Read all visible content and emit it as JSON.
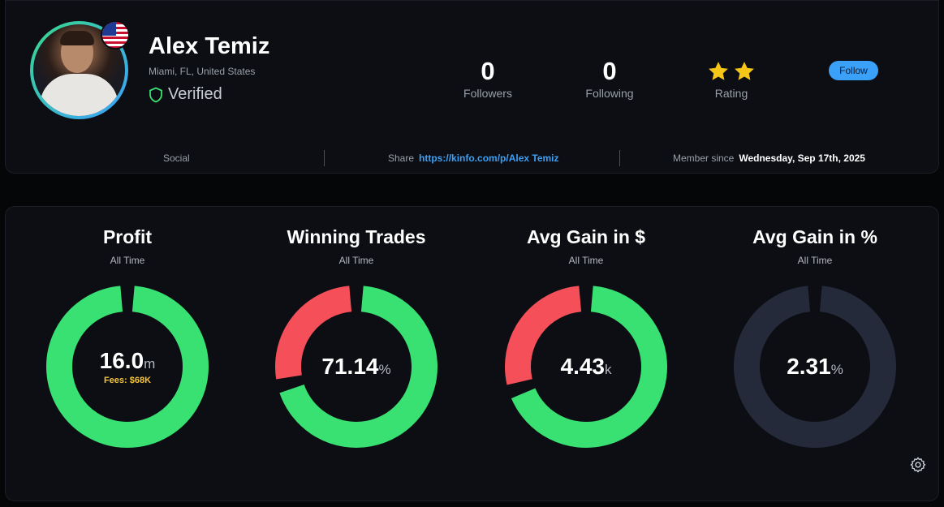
{
  "profile": {
    "name": "Alex Temiz",
    "location": "Miami, FL, United States",
    "verified_label": "Verified",
    "followers": {
      "count": "0",
      "label": "Followers"
    },
    "following": {
      "count": "0",
      "label": "Following"
    },
    "rating": {
      "label": "Rating",
      "stars": 2
    },
    "follow_button": "Follow",
    "social_label": "Social",
    "share_label": "Share",
    "share_url": "https://kinfo.com/p/Alex Temiz",
    "member_since_label": "Member since",
    "member_since_date": "Wednesday, Sep 17th, 2025"
  },
  "colors": {
    "green": "#39e072",
    "red": "#f5505a",
    "neutral": "#252a3a",
    "star": "#f5c518",
    "link": "#3ba0f7"
  },
  "metrics": [
    {
      "title": "Profit",
      "period": "All Time",
      "value": "16.0",
      "unit": "m",
      "fees": "Fees: $68K",
      "green_fraction": 1.0,
      "ring": "green"
    },
    {
      "title": "Winning Trades",
      "period": "All Time",
      "value": "71.14",
      "unit": "%",
      "green_fraction": 0.7114,
      "ring": "split"
    },
    {
      "title": "Avg Gain in $",
      "period": "All Time",
      "value": "4.43",
      "unit": "k",
      "green_fraction": 0.7,
      "ring": "split"
    },
    {
      "title": "Avg Gain in %",
      "period": "All Time",
      "value": "2.31",
      "unit": "%",
      "green_fraction": 0,
      "ring": "neutral"
    }
  ]
}
